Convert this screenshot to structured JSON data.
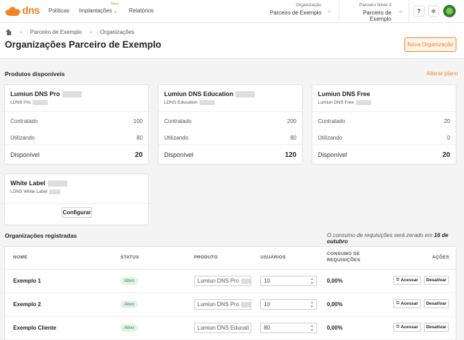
{
  "nav": {
    "logo_text": "dns",
    "links": [
      "Políticas",
      "Implantações",
      "Relatórios"
    ],
    "new_badge": "Novo",
    "org_label": "Organização",
    "org_value": "Parceiro de Exemplo",
    "partner_label": "Parceiro Nível 3",
    "partner_value": "Parceiro de Exemplo",
    "help_icon": "?",
    "settings_icon": "✲"
  },
  "breadcrumb": [
    "Parceiro de Exemplo",
    "Organizações"
  ],
  "page_title": "Organizações Parceiro de Exemplo",
  "new_org_button": "Nova Organização",
  "products_section": {
    "title": "Produtos disponíveis",
    "change_plan": "Alterar plano",
    "cards": [
      {
        "title": "Lumiun DNS Pro",
        "subtitle": "LDNS Pro",
        "contratado_label": "Contratado",
        "contratado": "100",
        "utilizando_label": "Utilizando",
        "utilizando": "80",
        "disponivel_label": "Disponível",
        "disponivel": "20"
      },
      {
        "title": "Lumiun DNS Education",
        "subtitle": "LDNS Education",
        "contratado_label": "Contratado",
        "contratado": "200",
        "utilizando_label": "Utilizando",
        "utilizando": "80",
        "disponivel_label": "Disponível",
        "disponivel": "120"
      },
      {
        "title": "Lumiun DNS Free",
        "subtitle": "Lumiun DNS Free",
        "contratado_label": "Contratado",
        "contratado": "20",
        "utilizando_label": "Utilizando",
        "utilizando": "0",
        "disponivel_label": "Disponível",
        "disponivel": "20"
      }
    ],
    "white_label": {
      "title": "White Label",
      "subtitle": "LDNS White Label",
      "button": "Configurar"
    }
  },
  "orgs_section": {
    "title": "Organizações registradas",
    "note_prefix": "O consumo de requisições será zerado em",
    "note_date": "16 de outubro",
    "columns": {
      "name": "NOME",
      "status": "STATUS",
      "product": "PRODUTO",
      "users": "USUÁRIOS",
      "consumo_1": "CONSUMO DE",
      "consumo_2": "REQUISIÇÕES",
      "actions": "AÇÕES"
    },
    "rows": [
      {
        "name": "Exemplo 1",
        "status": "Ativo",
        "product": "Lumiun DNS Pro",
        "users": "10",
        "consumo": "0,00%",
        "access": "Acessar",
        "deactivate": "Desativar"
      },
      {
        "name": "Exemplo 2",
        "status": "Ativo",
        "product": "Lumiun DNS Pro",
        "users": "10",
        "consumo": "0,00%",
        "access": "Acessar",
        "deactivate": "Desativar"
      },
      {
        "name": "Exemplo Cliente",
        "status": "Ativo",
        "product": "Lumiun DNS Educati",
        "users": "80",
        "consumo": "0,00%",
        "access": "Acessar",
        "deactivate": "Desativar"
      }
    ]
  }
}
